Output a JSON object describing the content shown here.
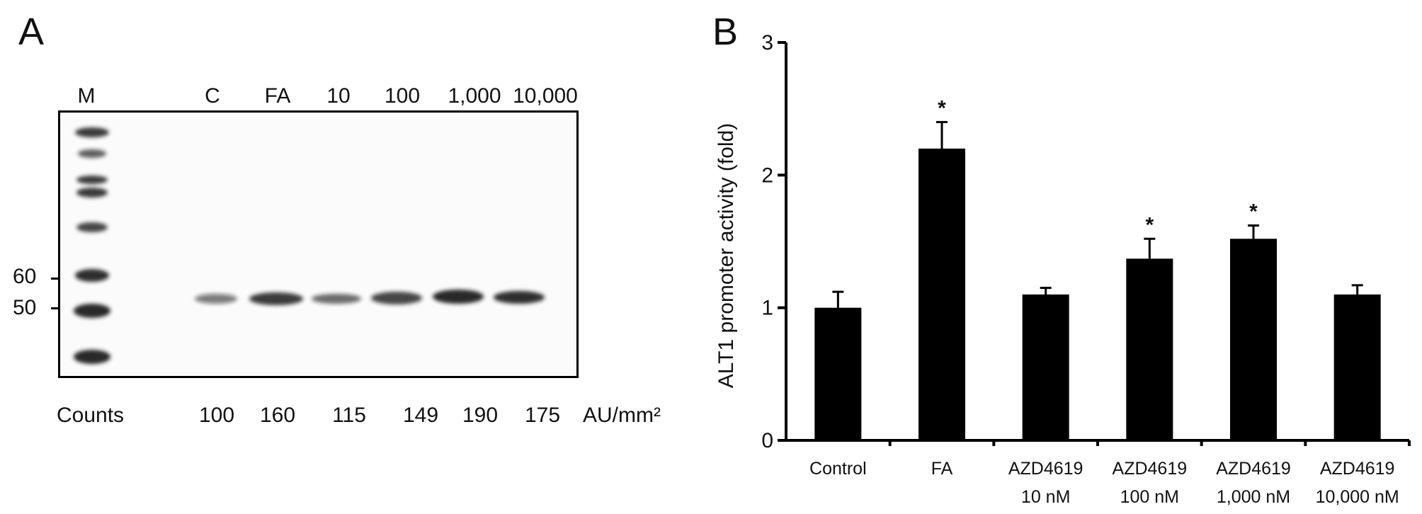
{
  "panel_a": {
    "label": "A",
    "marker_lane": "M",
    "lanes": [
      "C",
      "FA",
      "10",
      "100",
      "1,000",
      "10,000"
    ],
    "mw_markers": [
      "60",
      "50"
    ],
    "counts_label": "Counts",
    "counts": [
      "100",
      "160",
      "115",
      "149",
      "190",
      "175"
    ],
    "counts_unit": "AU/mm²"
  },
  "panel_b": {
    "label": "B"
  },
  "chart_data": {
    "type": "bar",
    "title": "",
    "xlabel": "",
    "ylabel": "ALT1 promoter activity (fold)",
    "ylim": [
      0,
      3
    ],
    "yticks": [
      "0",
      "1",
      "2",
      "3"
    ],
    "categories": [
      [
        "Control",
        ""
      ],
      [
        "FA",
        ""
      ],
      [
        "AZD4619",
        "10 nM"
      ],
      [
        "AZD4619",
        "100 nM"
      ],
      [
        "AZD4619",
        "1,000 nM"
      ],
      [
        "AZD4619",
        "10,000 nM"
      ]
    ],
    "values": [
      1.0,
      2.2,
      1.1,
      1.37,
      1.52,
      1.1
    ],
    "errors": [
      0.12,
      0.2,
      0.05,
      0.15,
      0.1,
      0.07
    ],
    "significance": [
      "",
      "*",
      "",
      "*",
      "*",
      ""
    ],
    "bar_color": "#000000",
    "grid": false
  }
}
